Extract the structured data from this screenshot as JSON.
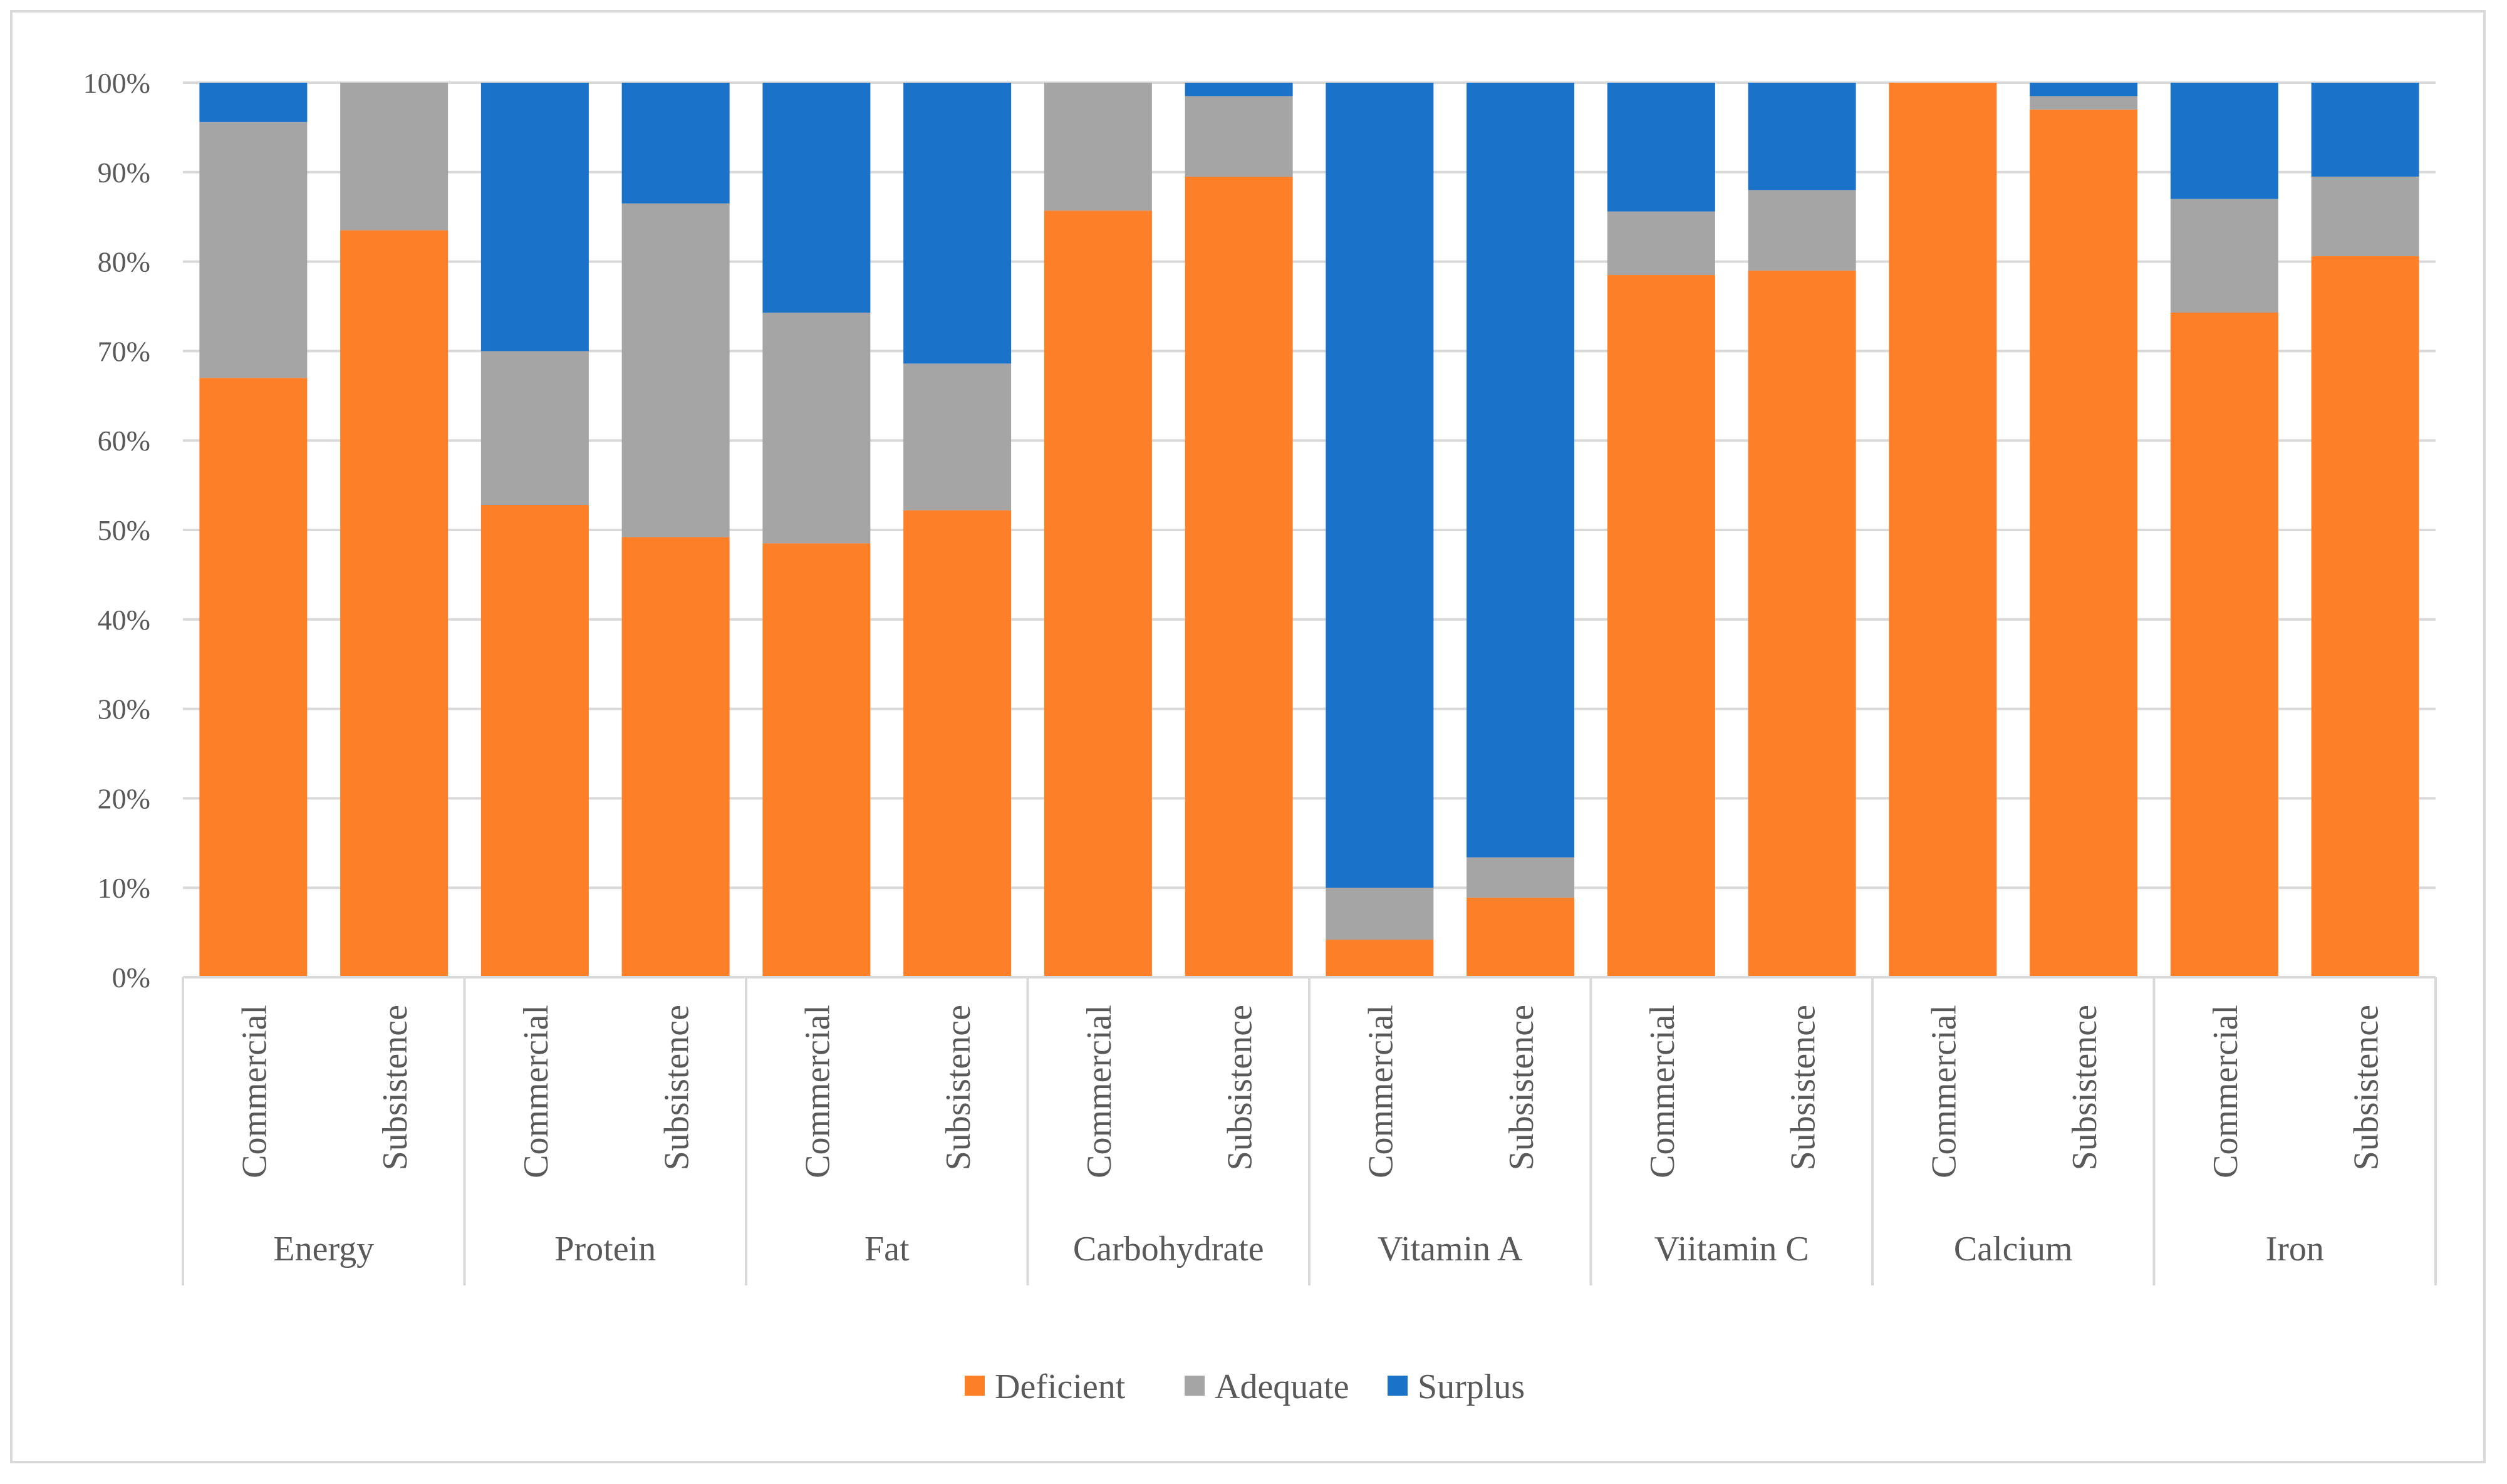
{
  "chart_data": {
    "type": "bar",
    "stacked": true,
    "percent_stacked": true,
    "title": "",
    "xlabel": "",
    "ylabel": "",
    "ylim": [
      0,
      100
    ],
    "yticks": [
      "0%",
      "10%",
      "20%",
      "30%",
      "40%",
      "50%",
      "60%",
      "70%",
      "80%",
      "90%",
      "100%"
    ],
    "groups": [
      "Energy",
      "Protein",
      "Fat",
      "Carbohydrate",
      "Vitamin A",
      "Viitamin C",
      "Calcium",
      "Iron"
    ],
    "subcategories": [
      "Commercial",
      "Subsistence"
    ],
    "series": [
      {
        "name": "Deficient",
        "color": "#fd7f27",
        "values": [
          67,
          83.5,
          52.8,
          49.2,
          48.5,
          52.2,
          85.7,
          89.5,
          4.2,
          8.9,
          78.5,
          79,
          100,
          97,
          74.3,
          80.6
        ]
      },
      {
        "name": "Adequate",
        "color": "#a5a5a5",
        "values": [
          28.6,
          16.5,
          17.2,
          37.3,
          25.8,
          16.4,
          14.3,
          9,
          5.8,
          4.5,
          7.1,
          9,
          0,
          1.5,
          12.7,
          8.9
        ]
      },
      {
        "name": "Surplus",
        "color": "#1a72c9",
        "values": [
          4.4,
          0,
          30,
          13.5,
          25.7,
          31.4,
          0,
          1.5,
          90,
          86.6,
          14.4,
          12,
          0,
          1.5,
          13,
          10.5
        ]
      }
    ],
    "legend": {
      "position": "bottom"
    },
    "grid": true
  }
}
